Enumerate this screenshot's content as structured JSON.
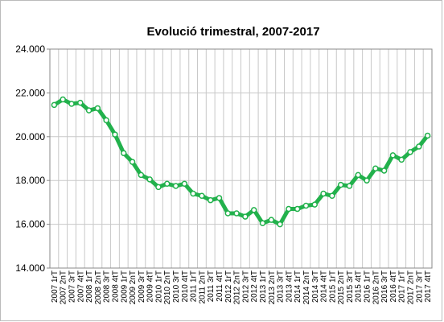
{
  "chart_data": {
    "type": "line",
    "title": "Evolució trimestral, 2007-2017",
    "categories": [
      "2007 1rT",
      "2007 2nT",
      "2007 3rT",
      "2007 4tT",
      "2008 1rT",
      "2008 2nT",
      "2008 3rT",
      "2008 4tT",
      "2009 1rT",
      "2009 2nT",
      "2009 3rT",
      "2009 4tT",
      "2010 1rT",
      "2010 2nT",
      "2010 3rT",
      "2010 4tT",
      "2011 1rT",
      "2011 2nT",
      "2011 3rT",
      "2011 4tT",
      "2012 1rT",
      "2012 2nT",
      "2012 3rT",
      "2012 4tT",
      "2013 1rT",
      "2013 2nT",
      "2013 3rT",
      "2013 4tT",
      "2014 1rT",
      "2014 2nT",
      "2014 3rT",
      "2014 4tT",
      "2015 1rT",
      "2015 2nT",
      "2015 3rT",
      "2015 4tT",
      "2016 1rT",
      "2016 2nT",
      "2016 3rT",
      "2016 4tT",
      "2017 1rT",
      "2017 2nT",
      "2017 3rT",
      "2017 4tT"
    ],
    "series": [
      {
        "name": "Evolució trimestral",
        "color": "#22b14c",
        "values": [
          21450,
          21700,
          21500,
          21550,
          21200,
          21300,
          20750,
          20100,
          19250,
          18850,
          18250,
          18050,
          17700,
          17850,
          17750,
          17850,
          17400,
          17300,
          17100,
          17200,
          16500,
          16500,
          16350,
          16650,
          16050,
          16200,
          16000,
          16700,
          16700,
          16850,
          16900,
          17400,
          17300,
          17800,
          17750,
          18250,
          18000,
          18550,
          18450,
          19150,
          18950,
          19300,
          19550,
          20050
        ]
      }
    ],
    "ylim": [
      14000,
      24000
    ],
    "yticks": [
      {
        "value": 14000,
        "label": "14.000"
      },
      {
        "value": 16000,
        "label": "16.000"
      },
      {
        "value": 18000,
        "label": "18.000"
      },
      {
        "value": 20000,
        "label": "20.000"
      },
      {
        "value": 22000,
        "label": "22.000"
      },
      {
        "value": 24000,
        "label": "24.000"
      }
    ],
    "grid": true
  }
}
